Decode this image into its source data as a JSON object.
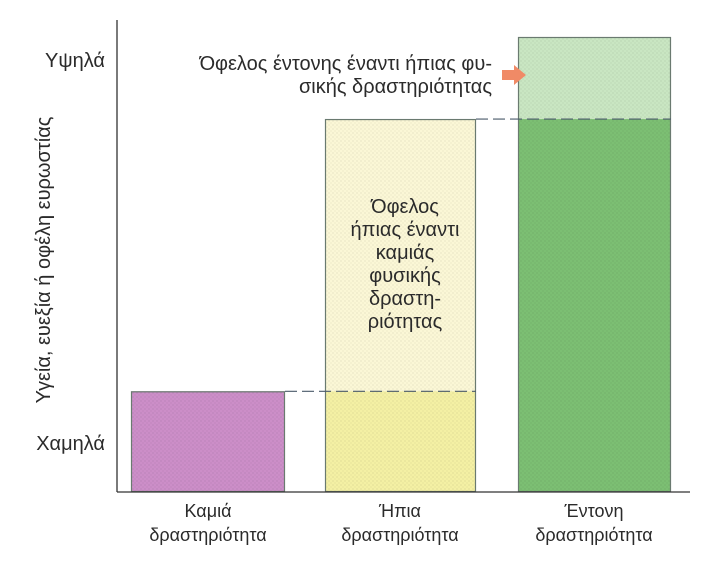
{
  "chart_data": {
    "type": "bar",
    "title": "",
    "ylabel": "Υγεία, ευεξία ή οφέλη ευρωστίας",
    "ytick_high": "Υψηλά",
    "ytick_low": "Χαμηλά",
    "categories": [
      [
        "Καμιά",
        "δραστηριότητα"
      ],
      [
        "Ήπια",
        "δραστηριότητα"
      ],
      [
        "Έντονη",
        "δραστηριότητα"
      ]
    ],
    "values": [
      0.27,
      1.0,
      1.22
    ],
    "base_level": 0.27,
    "mid_level": 1.0,
    "ylim": [
      0,
      1.22
    ],
    "annotations": {
      "mild_benefit": [
        "Όφελος",
        "ήπιας έναντι",
        "καμιάς",
        "φυσικής",
        "δραστη-",
        "ριότητας"
      ],
      "vigorous_benefit": [
        "Όφελος έντονης έναντι ήπιας φυ-",
        "σικής δραστηριότητας"
      ]
    },
    "colors": {
      "none_fill": "#cc8ec8",
      "mild_top": "#fbf7d6",
      "mild_base": "#f4f0a4",
      "vigorous_top": "#c9e6c2",
      "vigorous_base": "#7cbf73",
      "arrow": "#f08a66",
      "dash": "#4a5a6a",
      "text": "#2b2b2b"
    }
  }
}
